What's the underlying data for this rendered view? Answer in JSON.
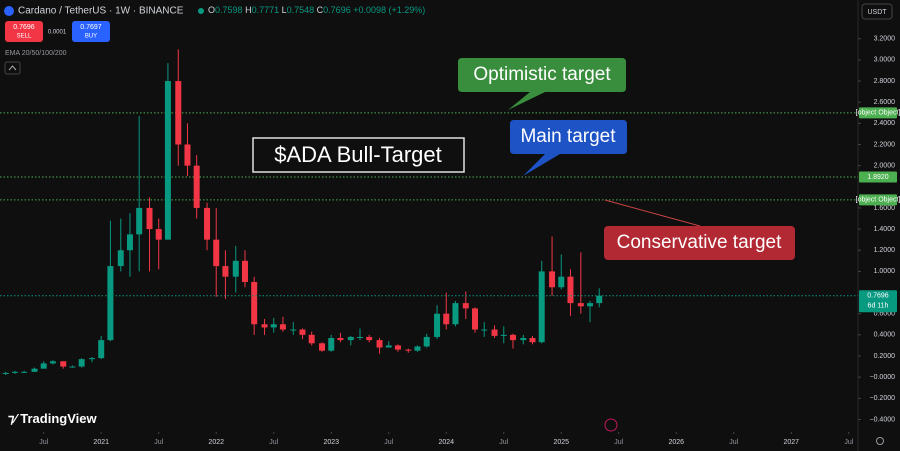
{
  "header": {
    "symbol": "Cardano / TetherUS · 1W · BINANCE",
    "ohlc": [
      {
        "key": "O",
        "value": "0.7598"
      },
      {
        "key": "H",
        "value": "0.7771"
      },
      {
        "key": "L",
        "value": "0.7548"
      },
      {
        "key": "C",
        "value": "0.7696"
      }
    ],
    "change": "+0.0098 (+1.29%)",
    "sell_price": "0.7696",
    "sell": "SELL",
    "spread": "0.0001",
    "buy_price": "0.7697",
    "buy": "BUY",
    "indicator": "EMA 20/50/100/200",
    "currency": "USDT",
    "brand": "TradingView",
    "countdown": "6d 11h"
  },
  "chart_data": {
    "type": "candlestick",
    "annotations": {
      "title": "$ADA Bull-Target",
      "optimistic": "Optimistic target",
      "main": "Main target",
      "conservative": "Conservative target"
    },
    "up_color": "#089981",
    "down_color": "#f23645",
    "x": [
      2020.17,
      2020.25,
      2020.33,
      2020.42,
      2020.5,
      2020.58,
      2020.67,
      2020.75,
      2020.83,
      2020.92,
      2021.0,
      2021.08,
      2021.17,
      2021.25,
      2021.33,
      2021.42,
      2021.5,
      2021.58,
      2021.67,
      2021.75,
      2021.83,
      2021.92,
      2022.0,
      2022.08,
      2022.17,
      2022.25,
      2022.33,
      2022.42,
      2022.5,
      2022.58,
      2022.67,
      2022.75,
      2022.83,
      2022.92,
      2023.0,
      2023.08,
      2023.17,
      2023.25,
      2023.33,
      2023.42,
      2023.5,
      2023.58,
      2023.67,
      2023.75,
      2023.83,
      2023.92,
      2024.0,
      2024.08,
      2024.17,
      2024.25,
      2024.33,
      2024.42,
      2024.5,
      2024.58,
      2024.67,
      2024.75,
      2024.83,
      2024.92,
      2025.0,
      2025.08,
      2025.17,
      2025.25,
      2025.33
    ],
    "open": [
      0.03,
      0.04,
      0.05,
      0.05,
      0.08,
      0.13,
      0.15,
      0.1,
      0.1,
      0.17,
      0.18,
      0.35,
      1.05,
      1.2,
      1.35,
      1.6,
      1.4,
      1.3,
      2.8,
      2.2,
      2.0,
      1.6,
      1.3,
      1.05,
      0.95,
      1.1,
      0.9,
      0.5,
      0.47,
      0.5,
      0.45,
      0.45,
      0.4,
      0.32,
      0.25,
      0.37,
      0.35,
      0.38,
      0.38,
      0.35,
      0.28,
      0.3,
      0.26,
      0.25,
      0.29,
      0.38,
      0.6,
      0.5,
      0.7,
      0.65,
      0.45,
      0.45,
      0.39,
      0.4,
      0.35,
      0.37,
      0.33,
      1.0,
      0.85,
      0.95,
      0.7,
      0.67,
      0.7
    ],
    "high": [
      0.05,
      0.06,
      0.06,
      0.09,
      0.15,
      0.16,
      0.15,
      0.11,
      0.18,
      0.19,
      0.39,
      1.48,
      1.5,
      1.55,
      2.47,
      1.7,
      1.5,
      2.97,
      3.1,
      2.4,
      2.1,
      1.65,
      1.6,
      1.2,
      1.24,
      1.2,
      0.95,
      0.55,
      0.56,
      0.57,
      0.52,
      0.46,
      0.43,
      0.33,
      0.4,
      0.42,
      0.39,
      0.46,
      0.4,
      0.37,
      0.34,
      0.31,
      0.27,
      0.3,
      0.41,
      0.68,
      0.8,
      0.72,
      0.81,
      0.66,
      0.52,
      0.49,
      0.48,
      0.41,
      0.4,
      0.39,
      1.1,
      1.33,
      1.16,
      1.02,
      1.18,
      0.72,
      0.84
    ],
    "low": [
      0.02,
      0.03,
      0.04,
      0.05,
      0.08,
      0.12,
      0.08,
      0.09,
      0.09,
      0.14,
      0.17,
      0.34,
      1.0,
      0.95,
      1.0,
      1.0,
      1.02,
      1.3,
      2.0,
      1.9,
      1.5,
      1.2,
      0.76,
      0.74,
      0.8,
      0.85,
      0.4,
      0.4,
      0.42,
      0.43,
      0.4,
      0.36,
      0.3,
      0.24,
      0.24,
      0.33,
      0.3,
      0.35,
      0.33,
      0.22,
      0.28,
      0.24,
      0.23,
      0.24,
      0.28,
      0.36,
      0.45,
      0.48,
      0.55,
      0.42,
      0.38,
      0.37,
      0.32,
      0.27,
      0.31,
      0.31,
      0.32,
      0.77,
      0.83,
      0.58,
      0.6,
      0.52,
      0.66
    ],
    "close": [
      0.04,
      0.05,
      0.05,
      0.08,
      0.13,
      0.15,
      0.1,
      0.1,
      0.17,
      0.18,
      0.35,
      1.05,
      1.2,
      1.35,
      1.6,
      1.4,
      1.3,
      2.8,
      2.2,
      2.0,
      1.6,
      1.3,
      1.05,
      0.95,
      1.1,
      0.9,
      0.5,
      0.47,
      0.5,
      0.45,
      0.45,
      0.4,
      0.32,
      0.25,
      0.37,
      0.35,
      0.38,
      0.38,
      0.35,
      0.28,
      0.3,
      0.26,
      0.25,
      0.29,
      0.38,
      0.6,
      0.5,
      0.7,
      0.65,
      0.45,
      0.45,
      0.39,
      0.4,
      0.35,
      0.37,
      0.33,
      1.0,
      0.85,
      0.95,
      0.7,
      0.67,
      0.7,
      0.77
    ],
    "levels": [
      {
        "value": 2.4994,
        "color": "#4caf50"
      },
      {
        "value": 1.892,
        "label": "1.8920",
        "color": "#4caf50"
      },
      {
        "value": 1.6765,
        "color": "#4caf50"
      }
    ],
    "last_price": {
      "value": 0.7696,
      "color": "#089981"
    },
    "xlim": [
      2020.12,
      2027.58
    ],
    "ylim": [
      -0.5,
      3.33
    ],
    "xticks": [
      {
        "value": 2020.5,
        "label": "Jul"
      },
      2021,
      {
        "value": 2021.5,
        "label": "Jul"
      },
      2022,
      {
        "value": 2022.5,
        "label": "Jul"
      },
      2023,
      {
        "value": 2023.5,
        "label": "Jul"
      },
      2024,
      {
        "value": 2024.5,
        "label": "Jul"
      },
      2025,
      {
        "value": 2025.5,
        "label": "Jul"
      },
      2026,
      {
        "value": 2026.5,
        "label": "Jul"
      },
      2027,
      {
        "value": 2027.5,
        "label": "Jul"
      }
    ],
    "yticks": [
      {
        "value": 3.2,
        "label": "3.2000"
      },
      {
        "value": 3.0,
        "label": "3.0000"
      },
      {
        "value": 2.8,
        "label": "2.8000"
      },
      {
        "value": 2.6,
        "label": "2.6000"
      },
      {
        "value": 2.4,
        "label": "2.4000"
      },
      {
        "value": 2.2,
        "label": "2.2000"
      },
      {
        "value": 2.0,
        "label": "2.0000"
      },
      {
        "value": 1.6,
        "label": "1.6000"
      },
      {
        "value": 1.4,
        "label": "1.4000"
      },
      {
        "value": 1.2,
        "label": "1.2000"
      },
      {
        "value": 1.0,
        "label": "1.0000"
      },
      {
        "value": 0.6,
        "label": "0.6000"
      },
      {
        "value": 0.4,
        "label": "0.4000"
      },
      {
        "value": 0.2,
        "label": "0.2000"
      },
      {
        "value": 0,
        "label": "−0.0000"
      },
      {
        "value": -0.2,
        "label": "−0.2000"
      },
      {
        "value": -0.4,
        "label": "−0.4000"
      }
    ]
  }
}
